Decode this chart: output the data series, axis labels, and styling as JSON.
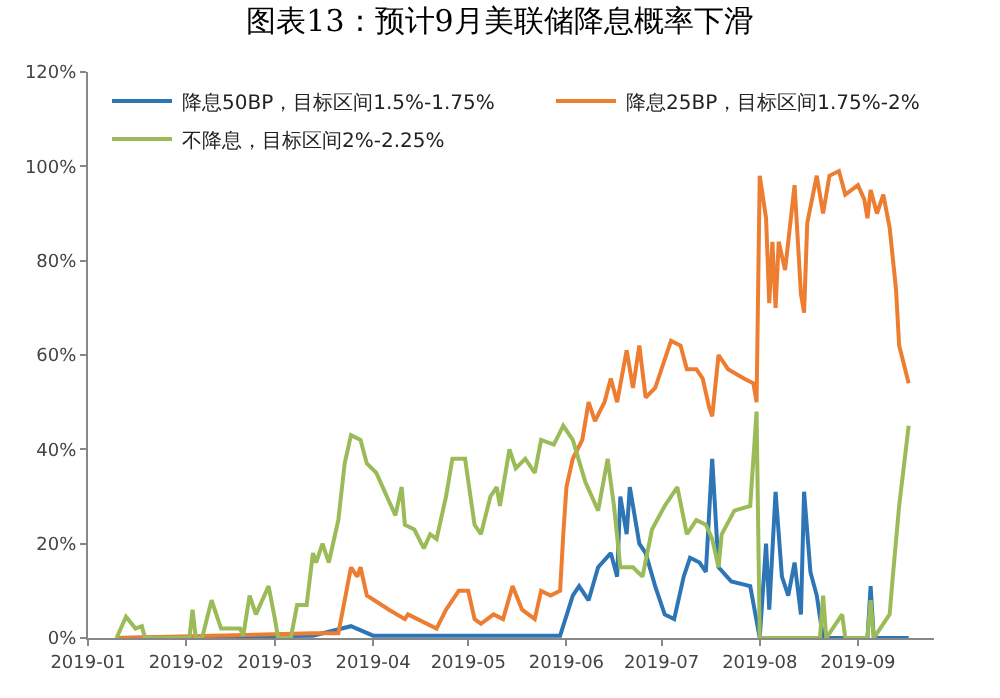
{
  "chart_data": {
    "type": "line",
    "title": "图表13：预计9月美联储降息概率下滑",
    "xlim": [
      "2019-01-01",
      "2019-09-25"
    ],
    "xticks": [
      "2019-01",
      "2019-02",
      "2019-03",
      "2019-04",
      "2019-05",
      "2019-06",
      "2019-07",
      "2019-08",
      "2019-09"
    ],
    "ylim": [
      0,
      120
    ],
    "yticks": [
      {
        "value": 0,
        "label": "0%"
      },
      {
        "value": 20,
        "label": "20%"
      },
      {
        "value": 40,
        "label": "40%"
      },
      {
        "value": 60,
        "label": "60%"
      },
      {
        "value": 80,
        "label": "80%"
      },
      {
        "value": 100,
        "label": "100%"
      },
      {
        "value": 120,
        "label": "120%"
      }
    ],
    "grid": false,
    "legend": "top",
    "marker": "none",
    "line_style": "solid",
    "series": [
      {
        "name": "降息50BP，目标区间1.5%-1.75%",
        "color": "#2e75b6",
        "x": [
          "2019-01-10",
          "2019-03-13",
          "2019-03-25",
          "2019-04-01",
          "2019-05-30",
          "2019-06-03",
          "2019-06-05",
          "2019-06-08",
          "2019-06-11",
          "2019-06-15",
          "2019-06-17",
          "2019-06-18",
          "2019-06-20",
          "2019-06-21",
          "2019-06-24",
          "2019-06-26",
          "2019-06-29",
          "2019-07-02",
          "2019-07-05",
          "2019-07-08",
          "2019-07-10",
          "2019-07-13",
          "2019-07-15",
          "2019-07-17",
          "2019-07-19",
          "2019-07-23",
          "2019-07-29",
          "2019-08-01",
          "2019-08-03",
          "2019-08-04",
          "2019-08-06",
          "2019-08-08",
          "2019-08-10",
          "2019-08-12",
          "2019-08-14",
          "2019-08-15",
          "2019-08-17",
          "2019-08-19",
          "2019-08-21",
          "2019-09-04",
          "2019-09-05",
          "2019-09-06",
          "2019-09-17"
        ],
        "values": [
          0,
          0.5,
          2.5,
          0.5,
          0.5,
          9,
          11,
          8,
          15,
          18,
          13,
          30,
          22,
          32,
          20,
          18,
          11,
          5,
          4,
          13,
          17,
          16,
          14,
          38,
          15,
          12,
          11,
          0,
          20,
          6,
          31,
          13,
          9,
          16,
          5,
          31,
          14,
          9,
          0,
          0,
          11,
          0,
          0
        ]
      },
      {
        "name": "降息25BP，目标区间1.75%-2%",
        "color": "#ed7d31",
        "x": [
          "2019-01-10",
          "2019-03-13",
          "2019-03-21",
          "2019-03-25",
          "2019-03-27",
          "2019-03-28",
          "2019-03-30",
          "2019-04-06",
          "2019-04-11",
          "2019-04-12",
          "2019-04-21",
          "2019-04-24",
          "2019-04-28",
          "2019-05-01",
          "2019-05-03",
          "2019-05-05",
          "2019-05-09",
          "2019-05-12",
          "2019-05-15",
          "2019-05-18",
          "2019-05-22",
          "2019-05-24",
          "2019-05-27",
          "2019-05-30",
          "2019-05-31",
          "2019-06-01",
          "2019-06-03",
          "2019-06-06",
          "2019-06-08",
          "2019-06-10",
          "2019-06-13",
          "2019-06-15",
          "2019-06-17",
          "2019-06-20",
          "2019-06-22",
          "2019-06-24",
          "2019-06-26",
          "2019-06-29",
          "2019-07-02",
          "2019-07-04",
          "2019-07-07",
          "2019-07-09",
          "2019-07-12",
          "2019-07-14",
          "2019-07-16",
          "2019-07-17",
          "2019-07-19",
          "2019-07-22",
          "2019-07-27",
          "2019-07-30",
          "2019-07-31",
          "2019-08-01",
          "2019-08-03",
          "2019-08-04",
          "2019-08-05",
          "2019-08-06",
          "2019-08-07",
          "2019-08-09",
          "2019-08-12",
          "2019-08-14",
          "2019-08-15",
          "2019-08-16",
          "2019-08-19",
          "2019-08-21",
          "2019-08-23",
          "2019-08-26",
          "2019-08-28",
          "2019-09-01",
          "2019-09-03",
          "2019-09-04",
          "2019-09-05",
          "2019-09-07",
          "2019-09-09",
          "2019-09-11",
          "2019-09-13",
          "2019-09-14",
          "2019-09-17"
        ],
        "values": [
          0,
          1,
          1,
          15,
          13,
          15,
          9,
          6,
          4,
          5,
          2,
          6,
          10,
          10,
          4,
          3,
          5,
          4,
          11,
          6,
          4,
          10,
          9,
          10,
          22,
          32,
          38,
          42,
          50,
          46,
          50,
          55,
          50,
          61,
          53,
          62,
          51,
          53,
          59,
          63,
          62,
          57,
          57,
          55,
          49,
          47,
          60,
          57,
          55,
          54,
          50,
          98,
          89,
          71,
          84,
          70,
          84,
          78,
          96,
          73,
          69,
          88,
          98,
          90,
          98,
          99,
          94,
          96,
          93,
          89,
          95,
          90,
          94,
          87,
          74,
          62,
          54
        ]
      },
      {
        "name": "不降息，目标区间2%-2.25%",
        "color": "#9bbb59",
        "x": [
          "2019-01-10",
          "2019-01-13",
          "2019-01-16",
          "2019-01-18",
          "2019-01-19",
          "2019-02-02",
          "2019-02-03",
          "2019-02-04",
          "2019-02-06",
          "2019-02-09",
          "2019-02-12",
          "2019-02-18",
          "2019-02-19",
          "2019-02-21",
          "2019-02-23",
          "2019-02-27",
          "2019-03-01",
          "2019-03-02",
          "2019-03-06",
          "2019-03-08",
          "2019-03-11",
          "2019-03-13",
          "2019-03-14",
          "2019-03-16",
          "2019-03-18",
          "2019-03-21",
          "2019-03-23",
          "2019-03-25",
          "2019-03-28",
          "2019-03-30",
          "2019-04-02",
          "2019-04-04",
          "2019-04-06",
          "2019-04-08",
          "2019-04-10",
          "2019-04-11",
          "2019-04-14",
          "2019-04-17",
          "2019-04-19",
          "2019-04-21",
          "2019-04-24",
          "2019-04-26",
          "2019-04-30",
          "2019-05-03",
          "2019-05-05",
          "2019-05-08",
          "2019-05-10",
          "2019-05-11",
          "2019-05-14",
          "2019-05-16",
          "2019-05-19",
          "2019-05-22",
          "2019-05-24",
          "2019-05-28",
          "2019-05-31",
          "2019-06-03",
          "2019-06-07",
          "2019-06-11",
          "2019-06-14",
          "2019-06-16",
          "2019-06-18",
          "2019-06-22",
          "2019-06-25",
          "2019-06-28",
          "2019-07-02",
          "2019-07-06",
          "2019-07-09",
          "2019-07-12",
          "2019-07-15",
          "2019-07-17",
          "2019-07-19",
          "2019-07-20",
          "2019-07-24",
          "2019-07-29",
          "2019-07-31",
          "2019-08-01",
          "2019-08-20",
          "2019-08-21",
          "2019-08-22",
          "2019-08-27",
          "2019-08-28",
          "2019-09-04",
          "2019-09-05",
          "2019-09-06",
          "2019-09-11",
          "2019-09-12",
          "2019-09-14",
          "2019-09-17"
        ],
        "values": [
          0,
          4.5,
          2,
          2.5,
          0,
          0,
          6,
          0,
          0,
          8,
          2,
          2,
          0.5,
          9,
          5,
          11,
          4,
          0,
          0,
          7,
          7,
          18,
          16,
          20,
          16,
          25,
          37,
          43,
          42,
          37,
          35,
          32,
          29,
          26,
          32,
          24,
          23,
          19,
          22,
          21,
          30,
          38,
          38,
          24,
          22,
          30,
          32,
          28,
          40,
          36,
          38,
          35,
          42,
          41,
          45,
          42,
          33,
          27,
          38,
          28,
          15,
          15,
          13,
          23,
          28,
          32,
          22,
          25,
          24,
          21,
          15,
          22,
          27,
          28,
          48,
          0,
          0,
          9,
          0,
          5,
          0,
          0,
          8,
          0,
          5,
          13,
          28,
          45
        ]
      }
    ]
  }
}
